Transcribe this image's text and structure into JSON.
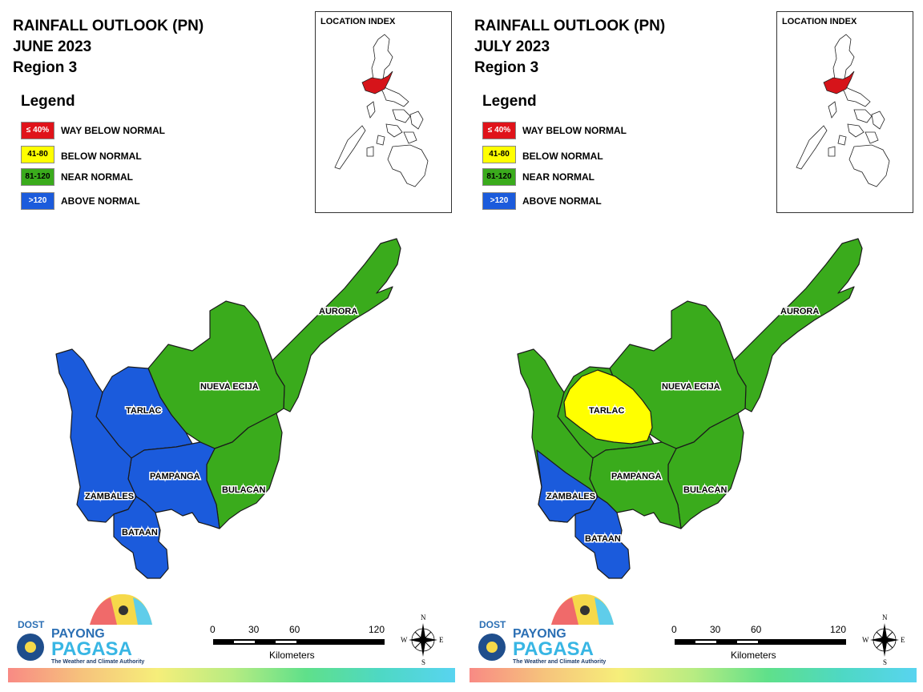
{
  "colors": {
    "way_below": "#e0131a",
    "below": "#ffff00",
    "near": "#3aab1c",
    "above": "#1b5bdc",
    "province_border": "#1a1a1a",
    "index_highlight": "#d6141a"
  },
  "legend": {
    "title": "Legend",
    "items": [
      {
        "swatch": "≤ 40%",
        "label": "WAY BELOW NORMAL",
        "color_key": "way_below"
      },
      {
        "swatch": "41-80",
        "label": "BELOW NORMAL",
        "color_key": "below"
      },
      {
        "swatch": "81-120",
        "label": "NEAR NORMAL",
        "color_key": "near"
      },
      {
        "swatch": ">120",
        "label": "ABOVE NORMAL",
        "color_key": "above"
      }
    ]
  },
  "location_index": {
    "title": "LOCATION INDEX"
  },
  "maps": [
    {
      "title_line1": "RAINFALL OUTLOOK (PN)",
      "title_line2": "JUNE 2023",
      "title_line3": "Region 3",
      "provinces": {
        "AURORA": "near",
        "NUEVA ECIJA": "near",
        "TARLAC": "above",
        "PAMPANGA": "above",
        "BULACAN": "near",
        "ZAMBALES": "above",
        "BATAAN": "above"
      }
    },
    {
      "title_line1": "RAINFALL OUTLOOK (PN)",
      "title_line2": "JULY 2023",
      "title_line3": "Region 3",
      "provinces": {
        "AURORA": "near",
        "NUEVA ECIJA": "near",
        "TARLAC": "below",
        "PAMPANGA": "near",
        "BULACAN": "near",
        "ZAMBALES": "near / above",
        "BATAAN": "above"
      }
    }
  ],
  "province_labels": {
    "aurora": "AURORA",
    "nueva_ecija": "NUEVA ECIJA",
    "tarlac": "TARLAC",
    "pampanga": "PAMPANGA",
    "bulacan": "BULACAN",
    "zambales": "ZAMBALES",
    "bataan": "BATAAN"
  },
  "logo": {
    "agency_prefix": "DOST",
    "name_top": "PAYONG",
    "name_main": "PAGASA",
    "tagline": "The Weather and Climate Authority"
  },
  "scale_bar": {
    "ticks": [
      "0",
      "30",
      "60",
      "120"
    ],
    "unit": "Kilometers"
  },
  "compass": {
    "n": "N",
    "s": "S",
    "e": "E",
    "w": "W"
  }
}
